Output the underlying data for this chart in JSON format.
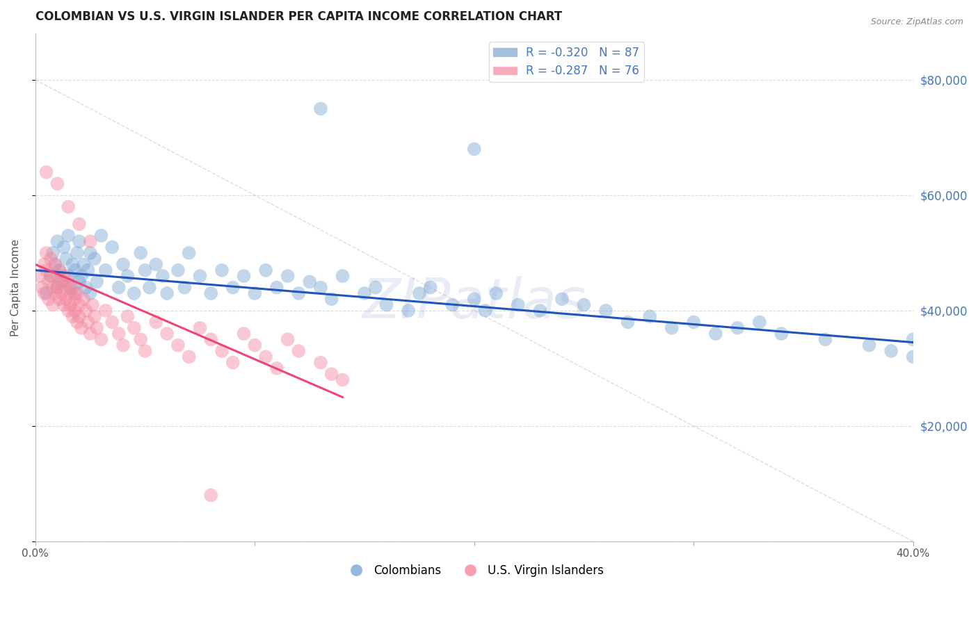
{
  "title": "COLOMBIAN VS U.S. VIRGIN ISLANDER PER CAPITA INCOME CORRELATION CHART",
  "source": "Source: ZipAtlas.com",
  "ylabel": "Per Capita Income",
  "xmin": 0.0,
  "xmax": 0.4,
  "ymin": 0,
  "ymax": 88000,
  "yticks": [
    0,
    20000,
    40000,
    60000,
    80000
  ],
  "ytick_labels": [
    "",
    "$20,000",
    "$40,000",
    "$60,000",
    "$80,000"
  ],
  "xticks": [
    0.0,
    0.1,
    0.2,
    0.3,
    0.4
  ],
  "xtick_labels": [
    "0.0%",
    "",
    "",
    "",
    "40.0%"
  ],
  "blue_color": "#7BA7D4",
  "pink_color": "#F4879C",
  "trend_blue": "#2255BB",
  "trend_pink": "#EE4477",
  "watermark": "ZIPatlas",
  "legend_R_blue": "R = -0.320",
  "legend_N_blue": "N = 87",
  "legend_R_pink": "R = -0.287",
  "legend_N_pink": "N = 76",
  "blue_scatter_x": [
    0.005,
    0.007,
    0.008,
    0.009,
    0.01,
    0.01,
    0.011,
    0.012,
    0.013,
    0.014,
    0.015,
    0.015,
    0.016,
    0.017,
    0.018,
    0.018,
    0.019,
    0.02,
    0.02,
    0.021,
    0.022,
    0.023,
    0.024,
    0.025,
    0.025,
    0.027,
    0.028,
    0.03,
    0.032,
    0.035,
    0.038,
    0.04,
    0.042,
    0.045,
    0.048,
    0.05,
    0.052,
    0.055,
    0.058,
    0.06,
    0.065,
    0.068,
    0.07,
    0.075,
    0.08,
    0.085,
    0.09,
    0.095,
    0.1,
    0.105,
    0.11,
    0.115,
    0.12,
    0.125,
    0.13,
    0.135,
    0.14,
    0.15,
    0.155,
    0.16,
    0.17,
    0.175,
    0.18,
    0.19,
    0.2,
    0.205,
    0.21,
    0.22,
    0.23,
    0.24,
    0.25,
    0.26,
    0.27,
    0.28,
    0.29,
    0.3,
    0.31,
    0.32,
    0.33,
    0.34,
    0.36,
    0.38,
    0.39,
    0.4,
    0.4,
    0.13,
    0.2
  ],
  "blue_scatter_y": [
    43000,
    46000,
    50000,
    48000,
    44000,
    52000,
    47000,
    45000,
    51000,
    49000,
    46000,
    53000,
    44000,
    48000,
    47000,
    43000,
    50000,
    45000,
    52000,
    46000,
    48000,
    44000,
    47000,
    50000,
    43000,
    49000,
    45000,
    53000,
    47000,
    51000,
    44000,
    48000,
    46000,
    43000,
    50000,
    47000,
    44000,
    48000,
    46000,
    43000,
    47000,
    44000,
    50000,
    46000,
    43000,
    47000,
    44000,
    46000,
    43000,
    47000,
    44000,
    46000,
    43000,
    45000,
    44000,
    42000,
    46000,
    43000,
    44000,
    41000,
    40000,
    43000,
    44000,
    41000,
    42000,
    40000,
    43000,
    41000,
    40000,
    42000,
    41000,
    40000,
    38000,
    39000,
    37000,
    38000,
    36000,
    37000,
    38000,
    36000,
    35000,
    34000,
    33000,
    35000,
    32000,
    75000,
    68000
  ],
  "pink_scatter_x": [
    0.002,
    0.003,
    0.004,
    0.004,
    0.005,
    0.005,
    0.006,
    0.006,
    0.007,
    0.007,
    0.008,
    0.008,
    0.009,
    0.009,
    0.01,
    0.01,
    0.011,
    0.011,
    0.012,
    0.012,
    0.013,
    0.013,
    0.014,
    0.014,
    0.015,
    0.015,
    0.016,
    0.016,
    0.017,
    0.017,
    0.018,
    0.018,
    0.019,
    0.019,
    0.02,
    0.02,
    0.021,
    0.022,
    0.023,
    0.024,
    0.025,
    0.026,
    0.027,
    0.028,
    0.03,
    0.032,
    0.035,
    0.038,
    0.04,
    0.042,
    0.045,
    0.048,
    0.05,
    0.055,
    0.06,
    0.065,
    0.07,
    0.075,
    0.08,
    0.085,
    0.09,
    0.095,
    0.1,
    0.105,
    0.11,
    0.115,
    0.12,
    0.13,
    0.135,
    0.14,
    0.005,
    0.01,
    0.015,
    0.02,
    0.025,
    0.08
  ],
  "pink_scatter_y": [
    46000,
    44000,
    48000,
    43000,
    50000,
    47000,
    45000,
    42000,
    49000,
    46000,
    44000,
    41000,
    48000,
    43000,
    46000,
    44000,
    42000,
    47000,
    45000,
    43000,
    41000,
    46000,
    44000,
    42000,
    40000,
    45000,
    43000,
    41000,
    39000,
    44000,
    42000,
    40000,
    38000,
    43000,
    41000,
    39000,
    37000,
    42000,
    40000,
    38000,
    36000,
    41000,
    39000,
    37000,
    35000,
    40000,
    38000,
    36000,
    34000,
    39000,
    37000,
    35000,
    33000,
    38000,
    36000,
    34000,
    32000,
    37000,
    35000,
    33000,
    31000,
    36000,
    34000,
    32000,
    30000,
    35000,
    33000,
    31000,
    29000,
    28000,
    64000,
    62000,
    58000,
    55000,
    52000,
    8000
  ],
  "blue_trend_x": [
    0.0,
    0.4
  ],
  "blue_trend_y": [
    47000,
    34500
  ],
  "pink_trend_x": [
    0.0,
    0.14
  ],
  "pink_trend_y": [
    48000,
    25000
  ],
  "diag_line_x": [
    0.0,
    0.4
  ],
  "diag_line_y": [
    80000,
    0
  ],
  "background_color": "#FFFFFF",
  "grid_color": "#CCCCCC",
  "right_label_color": "#4477BB",
  "title_color": "#222222"
}
